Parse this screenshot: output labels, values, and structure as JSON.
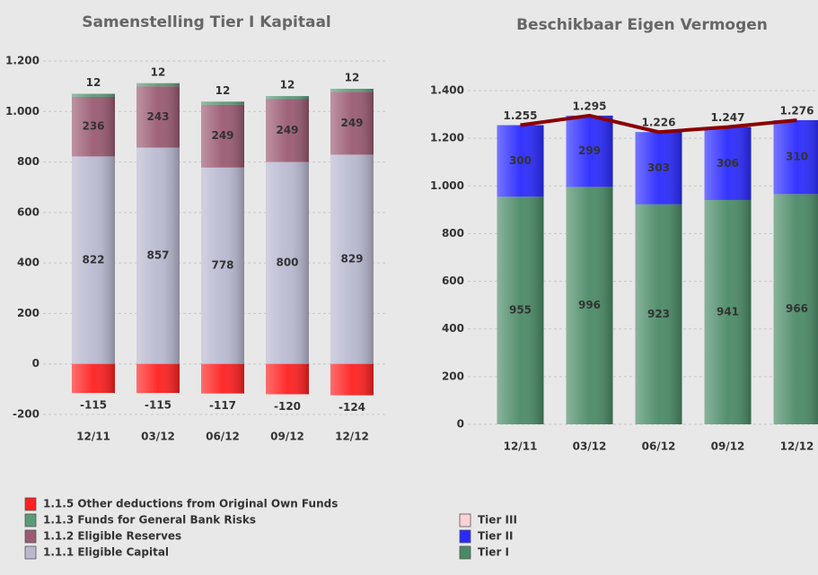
{
  "chart_data": [
    {
      "type": "stacked_bar",
      "title": "Samenstelling Tier I Kapitaal",
      "categories": [
        "12/11",
        "03/12",
        "06/12",
        "09/12",
        "12/12"
      ],
      "series": [
        {
          "name": "1.1.5 Other deductions from Original Own Funds",
          "color": "#ff2020",
          "values": [
            -115,
            -115,
            -117,
            -120,
            -124
          ]
        },
        {
          "name": "1.1.3 Funds for General Bank Risks",
          "color": "#5a9a78",
          "values": [
            12,
            12,
            12,
            12,
            12
          ]
        },
        {
          "name": "1.1.2 Eligible Reserves",
          "color": "#9a5a72",
          "values": [
            236,
            243,
            249,
            249,
            249
          ]
        },
        {
          "name": "1.1.1 Eligible Capital",
          "color": "#b8b8d0",
          "values": [
            822,
            857,
            778,
            800,
            829
          ]
        }
      ],
      "ylim": [
        -200,
        1200
      ],
      "yticks": [
        {
          "value": -200,
          "label": "-200"
        },
        0,
        200,
        400,
        600,
        800,
        {
          "value": 1000,
          "label": "1.000"
        },
        {
          "value": 1200,
          "label": "1.200"
        }
      ],
      "grid": true
    },
    {
      "type": "stacked_bar_line",
      "title": "Beschikbaar Eigen Vermogen",
      "categories": [
        "12/11",
        "03/12",
        "06/12",
        "09/12",
        "12/12"
      ],
      "series": [
        {
          "name": "Tier III",
          "color": "#ffd0d8",
          "values": [
            0,
            0,
            0,
            0,
            0
          ]
        },
        {
          "name": "Tier II",
          "color": "#2a2aff",
          "values": [
            300,
            299,
            303,
            306,
            310
          ]
        },
        {
          "name": "Tier I",
          "color": "#4a8a66",
          "values": [
            955,
            996,
            923,
            941,
            966
          ]
        }
      ],
      "total": {
        "color": "#8b0000",
        "values": [
          1255,
          1295,
          1226,
          1247,
          1276
        ],
        "value_labels": [
          "1.255",
          "1.295",
          "1.226",
          "1.247",
          "1.276"
        ]
      },
      "ylim": [
        0,
        1400
      ],
      "yticks": [
        0,
        200,
        400,
        600,
        800,
        {
          "value": 1000,
          "label": "1.000"
        },
        {
          "value": 1200,
          "label": "1.200"
        },
        {
          "value": 1400,
          "label": "1.400"
        }
      ],
      "grid": true
    }
  ]
}
